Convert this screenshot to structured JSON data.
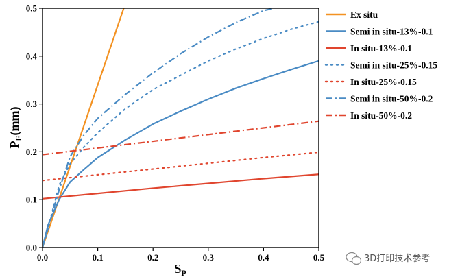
{
  "chart_data": {
    "type": "line",
    "xlabel": "S",
    "xlabel_sub": "P",
    "ylabel": "P",
    "ylabel_sub": "E",
    "ylabel_unit": "(mm)",
    "xlim": [
      0.0,
      0.5
    ],
    "ylim": [
      0.0,
      0.5
    ],
    "xticks": [
      "0.0",
      "0.1",
      "0.2",
      "0.3",
      "0.4",
      "0.5"
    ],
    "yticks": [
      "0.0",
      "0.1",
      "0.2",
      "0.3",
      "0.4",
      "0.5"
    ],
    "grid": false,
    "legend_position": "right",
    "series": [
      {
        "name": "Ex situ",
        "color": "#F39222",
        "dash": "solid",
        "x": [
          0.0,
          0.05,
          0.1,
          0.147
        ],
        "y": [
          0.0,
          0.17,
          0.34,
          0.5
        ]
      },
      {
        "name": "Semi in situ-13%-0.1",
        "color": "#4A8BC4",
        "dash": "solid",
        "x": [
          0.0,
          0.01,
          0.03,
          0.05,
          0.075,
          0.1,
          0.15,
          0.2,
          0.25,
          0.3,
          0.35,
          0.4,
          0.45,
          0.5
        ],
        "y": [
          0.0,
          0.047,
          0.1,
          0.137,
          0.163,
          0.188,
          0.225,
          0.258,
          0.285,
          0.31,
          0.333,
          0.353,
          0.372,
          0.39
        ]
      },
      {
        "name": "In situ-13%-0.1",
        "color": "#E0452E",
        "dash": "solid",
        "x": [
          0.0,
          0.1,
          0.2,
          0.3,
          0.4,
          0.5
        ],
        "y": [
          0.102,
          0.113,
          0.124,
          0.134,
          0.144,
          0.153
        ]
      },
      {
        "name": "Semi in situ-25%-0.15",
        "color": "#4A8BC4",
        "dash": "dot",
        "x": [
          0.0,
          0.01,
          0.03,
          0.05,
          0.075,
          0.1,
          0.15,
          0.2,
          0.25,
          0.3,
          0.35,
          0.4,
          0.45,
          0.5
        ],
        "y": [
          0.0,
          0.04,
          0.13,
          0.175,
          0.21,
          0.24,
          0.29,
          0.33,
          0.36,
          0.39,
          0.415,
          0.437,
          0.456,
          0.472
        ]
      },
      {
        "name": "In situ-25%-0.15",
        "color": "#E0452E",
        "dash": "dot",
        "x": [
          0.0,
          0.1,
          0.2,
          0.3,
          0.4,
          0.5
        ],
        "y": [
          0.14,
          0.152,
          0.164,
          0.176,
          0.188,
          0.199
        ]
      },
      {
        "name": "Semi in situ-50%-0.2",
        "color": "#4A8BC4",
        "dash": "dashdot",
        "x": [
          0.0,
          0.01,
          0.03,
          0.05,
          0.075,
          0.1,
          0.15,
          0.2,
          0.25,
          0.3,
          0.35,
          0.4,
          0.42
        ],
        "y": [
          0.0,
          0.04,
          0.12,
          0.19,
          0.235,
          0.27,
          0.32,
          0.365,
          0.405,
          0.44,
          0.47,
          0.495,
          0.5
        ]
      },
      {
        "name": "In situ-50%-0.2",
        "color": "#E0452E",
        "dash": "dashdot",
        "x": [
          0.0,
          0.1,
          0.2,
          0.3,
          0.4,
          0.5
        ],
        "y": [
          0.194,
          0.208,
          0.222,
          0.236,
          0.25,
          0.264
        ]
      }
    ]
  },
  "watermark": {
    "text": "3D打印技术参考",
    "icon": "wechat-icon"
  }
}
